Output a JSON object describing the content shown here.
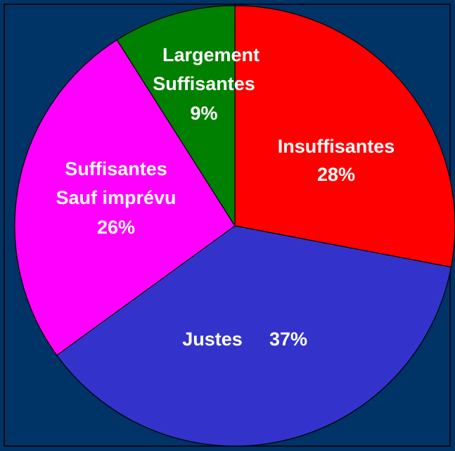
{
  "chart_data": {
    "type": "pie",
    "categories": [
      [
        "Insuffisantes"
      ],
      [
        "Justes"
      ],
      [
        "Suffisantes",
        "Sauf imprévu"
      ],
      [
        "Largement",
        "Suffisantes"
      ]
    ],
    "values": [
      28,
      37,
      26,
      9
    ],
    "value_labels": [
      "28%",
      "37%",
      "26%",
      "9%"
    ],
    "colors": [
      "#ff0000",
      "#3333cc",
      "#ff00ff",
      "#008000"
    ]
  }
}
